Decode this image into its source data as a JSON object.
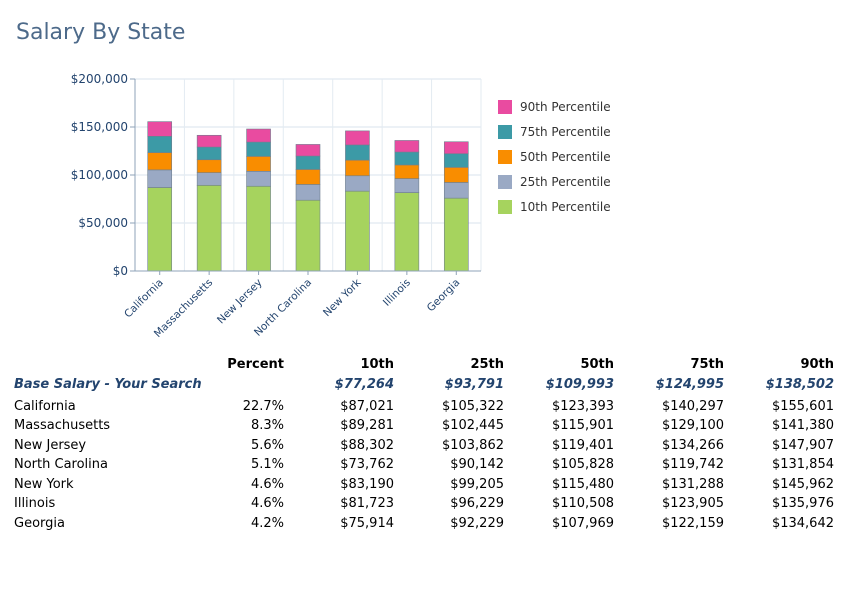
{
  "page": {
    "title": "Salary By State"
  },
  "chart_data": {
    "type": "bar",
    "stacked": true,
    "categories": [
      "California",
      "Massachusetts",
      "New Jersey",
      "North Carolina",
      "New York",
      "Illinois",
      "Georgia"
    ],
    "series": [
      {
        "name": "10th Percentile",
        "color": "#a6d35e",
        "values": [
          87021,
          89281,
          88302,
          73762,
          83190,
          81723,
          75914
        ]
      },
      {
        "name": "25th Percentile",
        "color": "#9aa9c4",
        "values": [
          18301,
          13164,
          15560,
          16380,
          16015,
          14506,
          16315
        ]
      },
      {
        "name": "50th Percentile",
        "color": "#f98d00",
        "values": [
          18071,
          13456,
          15539,
          15686,
          16275,
          14279,
          15740
        ]
      },
      {
        "name": "75th Percentile",
        "color": "#3c9aa6",
        "values": [
          16904,
          13199,
          14865,
          13914,
          15808,
          13397,
          14190
        ]
      },
      {
        "name": "90th Percentile",
        "color": "#e94ba0",
        "values": [
          15304,
          12280,
          13641,
          12112,
          14674,
          12071,
          12483
        ]
      }
    ],
    "ylim": [
      0,
      200000
    ],
    "yticks": [
      0,
      50000,
      100000,
      150000,
      200000
    ],
    "ytick_labels": [
      "$0",
      "$50,000",
      "$100,000",
      "$150,000",
      "$200,000"
    ],
    "grid": true,
    "legend_position": "right"
  },
  "legend": [
    {
      "label": "90th Percentile",
      "color": "#e94ba0"
    },
    {
      "label": "75th Percentile",
      "color": "#3c9aa6"
    },
    {
      "label": "50th Percentile",
      "color": "#f98d00"
    },
    {
      "label": "25th Percentile",
      "color": "#9aa9c4"
    },
    {
      "label": "10th Percentile",
      "color": "#a6d35e"
    }
  ],
  "table": {
    "headers": [
      "",
      "Percent",
      "10th",
      "25th",
      "50th",
      "75th",
      "90th"
    ],
    "search_row": {
      "label": "Base Salary - Your Search",
      "values": [
        "$77,264",
        "$93,791",
        "$109,993",
        "$124,995",
        "$138,502"
      ]
    },
    "rows": [
      {
        "state": "California",
        "percent": "22.7%",
        "p10": "$87,021",
        "p25": "$105,322",
        "p50": "$123,393",
        "p75": "$140,297",
        "p90": "$155,601"
      },
      {
        "state": "Massachusetts",
        "percent": "8.3%",
        "p10": "$89,281",
        "p25": "$102,445",
        "p50": "$115,901",
        "p75": "$129,100",
        "p90": "$141,380"
      },
      {
        "state": "New Jersey",
        "percent": "5.6%",
        "p10": "$88,302",
        "p25": "$103,862",
        "p50": "$119,401",
        "p75": "$134,266",
        "p90": "$147,907"
      },
      {
        "state": "North Carolina",
        "percent": "5.1%",
        "p10": "$73,762",
        "p25": "$90,142",
        "p50": "$105,828",
        "p75": "$119,742",
        "p90": "$131,854"
      },
      {
        "state": "New York",
        "percent": "4.6%",
        "p10": "$83,190",
        "p25": "$99,205",
        "p50": "$115,480",
        "p75": "$131,288",
        "p90": "$145,962"
      },
      {
        "state": "Illinois",
        "percent": "4.6%",
        "p10": "$81,723",
        "p25": "$96,229",
        "p50": "$110,508",
        "p75": "$123,905",
        "p90": "$135,976"
      },
      {
        "state": "Georgia",
        "percent": "4.2%",
        "p10": "$75,914",
        "p25": "$92,229",
        "p50": "$107,969",
        "p75": "$122,159",
        "p90": "$134,642"
      }
    ]
  }
}
